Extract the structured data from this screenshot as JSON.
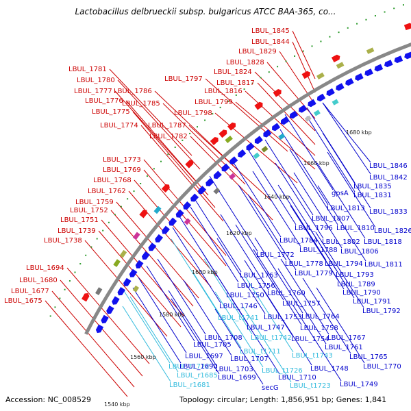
{
  "title": "Lactobacillus delbrueckii subsp. bulgaricus ATCC BAA-365, co...",
  "accession": "Accession: NC_008529",
  "topology": "Topology: circular; Length: 1,856,951 bp; Genes: 1,841",
  "ticks": [
    "1540 kbp",
    "1560 kbp",
    "1580 kbp",
    "1600 kbp",
    "1620 kbp",
    "1640 kbp",
    "1660 kbp",
    "1680 kbp"
  ],
  "colors": {
    "forward_label": "#cc0000",
    "reverse_label": "#0000cc",
    "rna_label": "#33bbdd",
    "forward_arrow": "#ee1111",
    "reverse_arrow": "#1111ee",
    "backbone": "#888888"
  },
  "labels_left": [
    "LBUL_1845",
    "LBUL_1844",
    "LBUL_1829",
    "LBUL_1828",
    "LBUL_1824",
    "LBUL_1817",
    "LBUL_1816",
    "LBUL_1799",
    "LBUL_1798",
    "LBUL_1797",
    "LBUL_1787",
    "LBUL_1786",
    "LBUL_1785",
    "LBUL_1782",
    "LBUL_1781",
    "LBUL_1780",
    "LBUL_1777",
    "LBUL_1776",
    "LBUL_1775",
    "LBUL_1774",
    "LBUL_1773",
    "LBUL_1769",
    "LBUL_1768",
    "LBUL_1762",
    "LBUL_1759",
    "LBUL_1752",
    "LBUL_1751",
    "LBUL_1739",
    "LBUL_1738",
    "LBUL_1694",
    "LBUL_1680",
    "LBUL_1677",
    "LBUL_1675"
  ],
  "labels_right": [
    "LBUL_1846",
    "LBUL_1842",
    "LBUL_1835",
    "LBUL_1831",
    "gpsA",
    "LBUL_1813",
    "LBUL_1833",
    "LBUL_1807",
    "LBUL_1826",
    "LBUL_1796",
    "LBUL_1810",
    "LBUL_1818",
    "LBUL_1784",
    "LBUL_1802",
    "LBUL_1788",
    "LBUL_1806",
    "LBUL_1772",
    "LBUL_1778",
    "LBUL_1794",
    "LBUL_1811",
    "LBUL_1779",
    "LBUL_1793",
    "LBUL_1763",
    "LBUL_1789",
    "LBUL_1756",
    "LBUL_1790",
    "LBUL_1750",
    "LBUL_1760",
    "LBUL_1791",
    "LBUL_1746",
    "LBUL_1757",
    "LBUL_1792",
    "LBUL_t1741",
    "LBUL_1753",
    "LBUL_1764",
    "LBUL_1747",
    "LBUL_1758",
    "LBUL_1708",
    "LBUL_t1742",
    "LBUL_1754",
    "LBUL_1767",
    "LBUL_1705",
    "LBUL_1761",
    "LBUL_t1711",
    "LBUL_1697",
    "LBUL_1707",
    "LBUL_t1743",
    "LBUL_1765",
    "LBUL_t1722",
    "LBUL_1690",
    "LBUL_1703",
    "LBUL_1748",
    "LBUL_1770",
    "LBUL_r1685",
    "LBUL_1699",
    "LBUL_t1726",
    "LBUL_1710",
    "LBUL_r1681",
    "secG",
    "LBUL_t1723",
    "LBUL_1749"
  ]
}
